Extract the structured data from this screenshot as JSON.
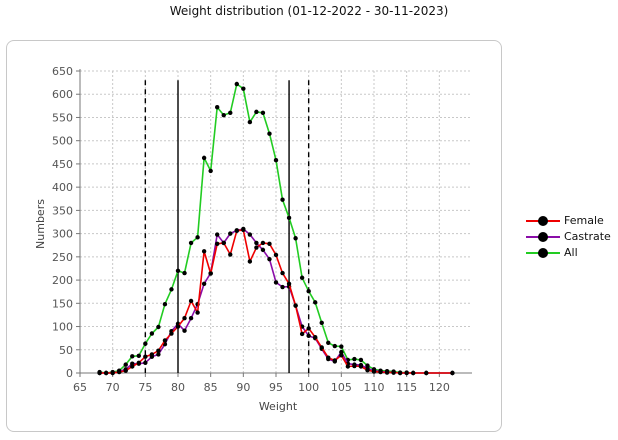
{
  "chart_data": {
    "type": "line",
    "title": "Weight distribution (01-12-2022 - 30-11-2023)",
    "xlabel": "Weight",
    "ylabel": "Numbers",
    "xlim": [
      65,
      125
    ],
    "ylim": [
      0,
      650
    ],
    "x_ticks": [
      65,
      70,
      75,
      80,
      85,
      90,
      95,
      100,
      105,
      110,
      115,
      120
    ],
    "y_ticks": [
      0,
      50,
      100,
      150,
      200,
      250,
      300,
      350,
      400,
      450,
      500,
      550,
      600,
      650
    ],
    "grid": true,
    "legend_position": "right",
    "vertical_lines": [
      {
        "x": 75,
        "style": "dashed"
      },
      {
        "x": 80,
        "style": "solid"
      },
      {
        "x": 97,
        "style": "solid"
      },
      {
        "x": 100,
        "style": "dashed"
      }
    ],
    "series": [
      {
        "name": "Female",
        "color": "#ee0000",
        "x": [
          68,
          69,
          70,
          71,
          72,
          73,
          74,
          75,
          76,
          77,
          78,
          79,
          80,
          81,
          82,
          83,
          84,
          85,
          86,
          87,
          88,
          89,
          90,
          91,
          92,
          93,
          94,
          95,
          96,
          97,
          98,
          99,
          100,
          101,
          102,
          103,
          104,
          105,
          106,
          107,
          108,
          109,
          110,
          111,
          112,
          113,
          114,
          115,
          116,
          118,
          122
        ],
        "y": [
          0,
          0,
          0,
          2,
          5,
          14,
          22,
          35,
          40,
          48,
          70,
          85,
          100,
          118,
          155,
          130,
          262,
          214,
          278,
          280,
          255,
          306,
          308,
          240,
          270,
          280,
          278,
          254,
          215,
          192,
          145,
          84,
          96,
          77,
          55,
          33,
          27,
          38,
          14,
          15,
          14,
          6,
          3,
          2,
          1,
          1,
          0,
          0,
          0,
          0,
          0
        ]
      },
      {
        "name": "Castrate",
        "color": "#8a0da8",
        "x": [
          68,
          69,
          70,
          71,
          72,
          73,
          74,
          75,
          76,
          77,
          78,
          79,
          80,
          81,
          82,
          83,
          84,
          85,
          86,
          87,
          88,
          89,
          90,
          91,
          92,
          93,
          94,
          95,
          96,
          97,
          98,
          99,
          100,
          101,
          102,
          103,
          104,
          105,
          106,
          107,
          108,
          109,
          110,
          111,
          112,
          113,
          114,
          115,
          116,
          118,
          122
        ],
        "y": [
          0,
          0,
          0,
          3,
          8,
          20,
          20,
          22,
          35,
          40,
          62,
          90,
          106,
          91,
          118,
          148,
          192,
          215,
          298,
          280,
          300,
          307,
          310,
          298,
          280,
          265,
          245,
          195,
          185,
          186,
          145,
          100,
          80,
          75,
          52,
          30,
          25,
          45,
          20,
          18,
          17,
          10,
          5,
          3,
          2,
          1,
          0,
          0,
          0,
          0,
          0
        ]
      },
      {
        "name": "All",
        "color": "#22cc22",
        "x": [
          68,
          69,
          70,
          71,
          72,
          73,
          74,
          75,
          76,
          77,
          78,
          79,
          80,
          81,
          82,
          83,
          84,
          85,
          86,
          87,
          88,
          89,
          90,
          91,
          92,
          93,
          94,
          95,
          96,
          97,
          98,
          99,
          100,
          101,
          102,
          103,
          104,
          105,
          106,
          107,
          108,
          109,
          110,
          111,
          112,
          113,
          114,
          115,
          116,
          118,
          122
        ],
        "y": [
          2,
          0,
          2,
          5,
          18,
          36,
          37,
          63,
          85,
          99,
          148,
          180,
          220,
          215,
          280,
          292,
          463,
          435,
          572,
          555,
          560,
          622,
          612,
          540,
          562,
          560,
          515,
          458,
          373,
          334,
          290,
          205,
          176,
          152,
          108,
          65,
          58,
          57,
          28,
          30,
          28,
          16,
          8,
          5,
          4,
          3,
          1,
          1,
          0,
          0,
          0
        ]
      }
    ]
  }
}
